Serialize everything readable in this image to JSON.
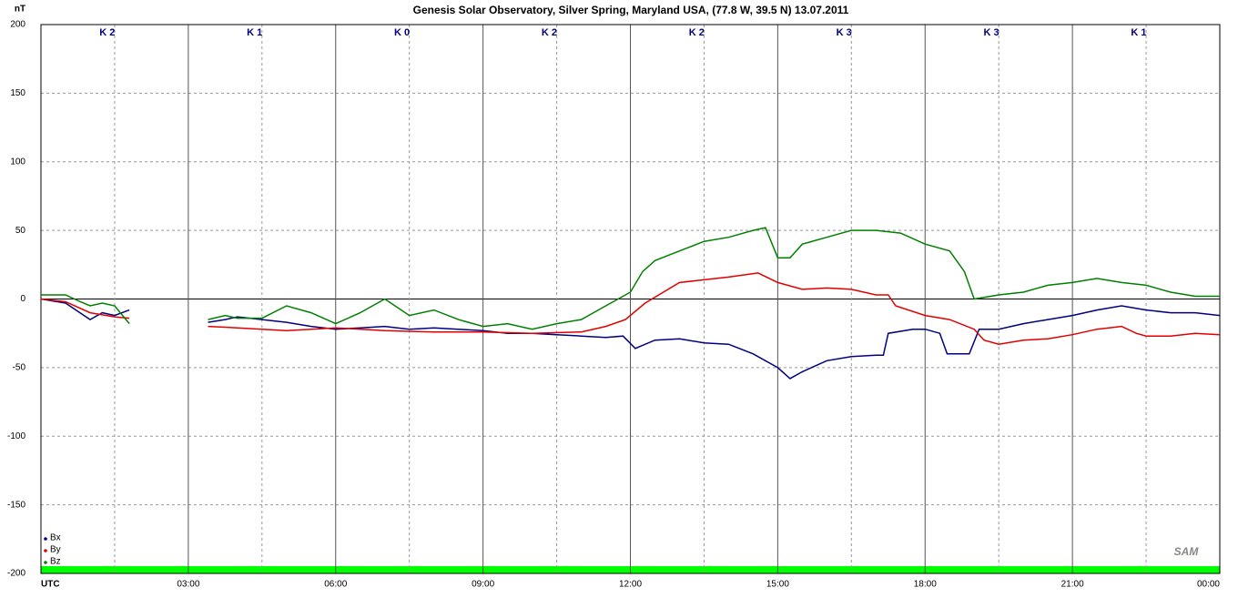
{
  "chart_data": {
    "type": "line",
    "title": "Genesis Solar Observatory, Silver Spring, Maryland USA, (77.8 W, 39.5 N)  13.07.2011",
    "y_label": "nT",
    "logo": "SAM",
    "k_labels": [
      "K 2",
      "K 1",
      "K 0",
      "K 2",
      "K 2",
      "K 3",
      "K 3",
      "K 1"
    ],
    "xlim": [
      0,
      24
    ],
    "xticks": [
      {
        "value": 0,
        "label": "UTC"
      },
      {
        "value": 3,
        "label": "03:00"
      },
      {
        "value": 6,
        "label": "06:00"
      },
      {
        "value": 9,
        "label": "09:00"
      },
      {
        "value": 12,
        "label": "12:00"
      },
      {
        "value": 15,
        "label": "15:00"
      },
      {
        "value": 18,
        "label": "18:00"
      },
      {
        "value": 21,
        "label": "21:00"
      },
      {
        "value": 24,
        "label": "00:00"
      }
    ],
    "xminorticks": [
      1.5,
      4.5,
      7.5,
      10.5,
      13.5,
      16.5,
      19.5,
      22.5
    ],
    "ylim": [
      -200,
      200
    ],
    "yticks": [
      200,
      150,
      100,
      50,
      0,
      -50,
      -100,
      -150,
      -200
    ],
    "grid": true,
    "legend": "bottom-left",
    "series": [
      {
        "name": "Bx",
        "color": "#000080",
        "x": [
          0,
          0.5,
          1,
          1.25,
          1.5,
          1.8,
          2.5,
          3.4,
          3.75,
          4,
          4.5,
          5,
          5.5,
          6,
          6.5,
          7,
          7.5,
          8,
          8.5,
          9,
          9.5,
          10,
          10.5,
          11,
          11.5,
          11.85,
          12.1,
          12.5,
          13,
          13.5,
          14,
          14.5,
          15,
          15.25,
          15.5,
          16,
          16.5,
          17,
          17.15,
          17.25,
          17.75,
          18,
          18.3,
          18.45,
          18.9,
          19.1,
          19.5,
          20,
          20.5,
          21,
          21.5,
          22,
          22.5,
          23,
          23.5,
          24
        ],
        "values": [
          0,
          -3,
          -15,
          -10,
          -12,
          -8,
          null,
          -17,
          -15,
          -13,
          -15,
          -17,
          -20,
          -22,
          -21,
          -20,
          -22,
          -21,
          -22,
          -23,
          -25,
          -25,
          -26,
          -27,
          -28,
          -27,
          -36,
          -30,
          -29,
          -32,
          -33,
          -40,
          -50,
          -58,
          -53,
          -45,
          -42,
          -41,
          -41,
          -25,
          -22,
          -22,
          -25,
          -40,
          -40,
          -22,
          -22,
          -18,
          -15,
          -12,
          -8,
          -5,
          -8,
          -10,
          -10,
          -12
        ]
      },
      {
        "name": "By",
        "color": "#e00000",
        "x": [
          0,
          0.5,
          1,
          1.5,
          1.8,
          2.5,
          3.4,
          4,
          5,
          6,
          7,
          8,
          9,
          10,
          11,
          11.5,
          11.9,
          12.3,
          13,
          13.5,
          14,
          14.6,
          15,
          15.5,
          16,
          16.5,
          17,
          17.25,
          17.4,
          18,
          18.5,
          19,
          19.2,
          19.5,
          20,
          20.5,
          21,
          21.5,
          22,
          22.3,
          22.5,
          23,
          23.5,
          24
        ],
        "values": [
          0,
          -2,
          -10,
          -13,
          -14,
          null,
          -20,
          -21,
          -23,
          -21,
          -23,
          -24,
          -24,
          -25,
          -24,
          -20,
          -15,
          -3,
          12,
          14,
          16,
          19,
          12,
          7,
          8,
          7,
          3,
          3,
          -5,
          -12,
          -15,
          -22,
          -30,
          -33,
          -30,
          -29,
          -26,
          -22,
          -20,
          -25,
          -27,
          -27,
          -25,
          -26
        ]
      },
      {
        "name": "Bz",
        "color": "#008000",
        "x": [
          0,
          0.5,
          0.8,
          1,
          1.25,
          1.5,
          1.8,
          2.5,
          3.4,
          3.75,
          4,
          4.5,
          5,
          5.5,
          6,
          6.5,
          7,
          7.5,
          8,
          8.5,
          9,
          9.5,
          10,
          10.5,
          11,
          11.5,
          12,
          12.25,
          12.5,
          13,
          13.5,
          14,
          14.5,
          14.75,
          15,
          15.25,
          15.5,
          16,
          16.5,
          17,
          17.5,
          18,
          18.5,
          18.8,
          19,
          19.5,
          20,
          20.5,
          21,
          21.5,
          22,
          22.5,
          23,
          23.5,
          24
        ],
        "values": [
          3,
          3,
          -2,
          -5,
          -3,
          -5,
          -18,
          null,
          -15,
          -12,
          -14,
          -14,
          -5,
          -10,
          -18,
          -10,
          0,
          -12,
          -8,
          -15,
          -20,
          -18,
          -22,
          -18,
          -15,
          -5,
          5,
          20,
          28,
          35,
          42,
          45,
          50,
          52,
          30,
          30,
          40,
          45,
          50,
          50,
          48,
          40,
          35,
          20,
          0,
          3,
          5,
          10,
          12,
          15,
          12,
          10,
          5,
          2,
          2
        ]
      }
    ]
  }
}
